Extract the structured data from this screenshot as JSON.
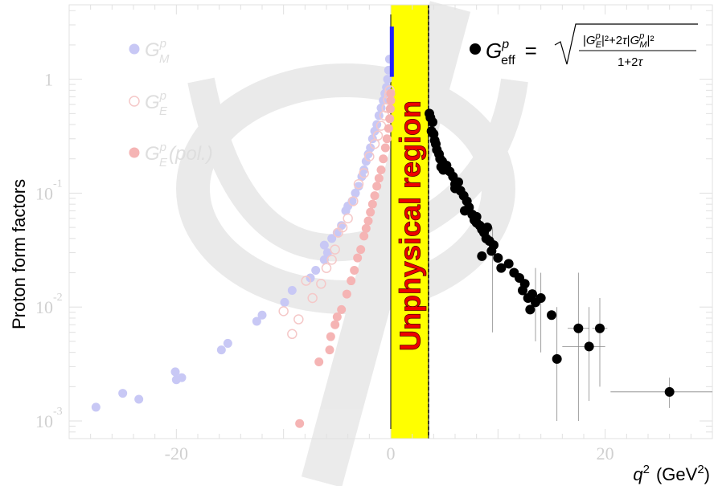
{
  "chart_data": {
    "type": "scatter",
    "title": "",
    "xlabel": "q² (GeV²)",
    "xlabel_parts": {
      "var": "q",
      "sup": "2",
      "unit": "(GeV",
      "unit_sup": "2",
      "unit_end": ")"
    },
    "ylabel": "Proton form factors",
    "xlim": [
      -30,
      30
    ],
    "ylim": [
      0.0007,
      4.5
    ],
    "yscale": "log",
    "x_ticks": [
      {
        "value": -20,
        "label": "-20"
      },
      {
        "value": 0,
        "label": "0"
      },
      {
        "value": 20,
        "label": "20"
      }
    ],
    "y_ticks": [
      {
        "value": 1,
        "base": "1",
        "exp": ""
      },
      {
        "value": 0.1,
        "base": "10",
        "exp": "-1"
      },
      {
        "value": 0.01,
        "base": "10",
        "exp": "-2"
      },
      {
        "value": 0.001,
        "base": "10",
        "exp": "-3"
      }
    ],
    "unphysical_region": {
      "x": [
        0,
        3.52
      ],
      "label": "Unphysical region",
      "fill": "#ffff00",
      "edge": "#000000"
    },
    "series": [
      {
        "legend": {
          "main": "G",
          "sup": "p",
          "sub": "M"
        },
        "marker": "filled-circle",
        "color": "#c8c8f5",
        "points": [
          [
            -27.5,
            0.00132
          ],
          [
            -25,
            0.00175
          ],
          [
            -23.5,
            0.00155
          ],
          [
            -20.1,
            0.0027
          ],
          [
            -19.5,
            0.0024
          ],
          [
            -20,
            0.0023
          ],
          [
            -15.2,
            0.0048
          ],
          [
            -15.8,
            0.0042
          ],
          [
            -12.5,
            0.0075
          ],
          [
            -12,
            0.0085
          ],
          [
            -9.9,
            0.011
          ],
          [
            -9.2,
            0.014
          ],
          [
            -7.5,
            0.018
          ],
          [
            -7,
            0.021
          ],
          [
            -6.2,
            0.026
          ],
          [
            -5.9,
            0.03
          ],
          [
            -6.2,
            0.035
          ],
          [
            -5.5,
            0.04
          ],
          [
            -5,
            0.045
          ],
          [
            -4.6,
            0.052
          ],
          [
            -4.2,
            0.07
          ],
          [
            -4,
            0.077
          ],
          [
            -3.6,
            0.085
          ],
          [
            -3.3,
            0.1
          ],
          [
            -3,
            0.115
          ],
          [
            -2.7,
            0.14
          ],
          [
            -2.5,
            0.16
          ],
          [
            -2.3,
            0.19
          ],
          [
            -2.1,
            0.22
          ],
          [
            -1.9,
            0.25
          ],
          [
            -1.7,
            0.3
          ],
          [
            -1.5,
            0.35
          ],
          [
            -1.3,
            0.4
          ],
          [
            -1.1,
            0.48
          ],
          [
            -0.9,
            0.56
          ],
          [
            -0.7,
            0.65
          ],
          [
            -0.55,
            0.75
          ],
          [
            -0.4,
            0.85
          ],
          [
            -0.3,
            1.0
          ],
          [
            -0.2,
            1.2
          ],
          [
            -0.12,
            1.5
          ]
        ]
      },
      {
        "legend": {
          "main": "G",
          "sup": "p",
          "sub": "E"
        },
        "marker": "open-circle",
        "color": "#f5c8c8",
        "points": [
          [
            -10,
            0.0092
          ],
          [
            -9.2,
            0.0058
          ],
          [
            -8.6,
            0.0078
          ],
          [
            -7.9,
            0.017
          ],
          [
            -7.3,
            0.012
          ],
          [
            -6.5,
            0.016
          ],
          [
            -6,
            0.022
          ],
          [
            -5.5,
            0.026
          ],
          [
            -5.2,
            0.032
          ],
          [
            -4.9,
            0.045
          ],
          [
            -4.5,
            0.05
          ],
          [
            -4,
            0.06
          ],
          [
            -3.5,
            0.085
          ],
          [
            -3,
            0.12
          ],
          [
            -2.5,
            0.15
          ],
          [
            -2,
            0.21
          ],
          [
            -1.5,
            0.27
          ],
          [
            -1.2,
            0.32
          ],
          [
            -0.9,
            0.39
          ],
          [
            -0.6,
            0.48
          ],
          [
            -0.4,
            0.56
          ],
          [
            -0.25,
            0.66
          ],
          [
            -0.15,
            0.73
          ],
          [
            -0.1,
            0.8
          ]
        ]
      },
      {
        "legend": {
          "main": "G",
          "sup": "p",
          "sub": "E",
          "extra": "(pol.)"
        },
        "marker": "filled-circle",
        "color": "#f5b4b4",
        "points": [
          [
            -8.5,
            0.00095
          ],
          [
            -6.7,
            0.0033
          ],
          [
            -5.7,
            0.0042
          ],
          [
            -5.6,
            0.0055
          ],
          [
            -5.2,
            0.007
          ],
          [
            -5,
            0.0082
          ],
          [
            -4.6,
            0.0095
          ],
          [
            -4.1,
            0.013
          ],
          [
            -3.7,
            0.017
          ],
          [
            -3.4,
            0.021
          ],
          [
            -3.1,
            0.027
          ],
          [
            -2.8,
            0.032
          ],
          [
            -2.5,
            0.042
          ],
          [
            -2.3,
            0.049
          ],
          [
            -2.1,
            0.057
          ],
          [
            -1.9,
            0.068
          ],
          [
            -1.7,
            0.08
          ],
          [
            -1.5,
            0.095
          ],
          [
            -1.3,
            0.115
          ],
          [
            -1.1,
            0.135
          ],
          [
            -0.9,
            0.16
          ],
          [
            -0.7,
            0.2
          ],
          [
            -0.5,
            0.25
          ],
          [
            -0.35,
            0.3
          ],
          [
            -0.2,
            0.37
          ],
          [
            -0.1,
            0.45
          ],
          [
            -0.05,
            0.55
          ],
          [
            0,
            0.65
          ],
          [
            0,
            0.75
          ]
        ]
      },
      {
        "legend": {
          "main": "G",
          "sup": "p",
          "sub": "eff"
        },
        "marker": "filled-circle",
        "color": "#000000",
        "formula": "G^p_eff = sqrt( (|G^p_E|^2 + 2τ|G^p_M|^2) / (1+2τ) )",
        "formula_parts": {
          "numerator": "|G|²+2τ|G|²",
          "denominator": "1+2τ",
          "tau": "τ"
        },
        "points": [
          [
            3.6,
            0.5
          ],
          [
            3.7,
            0.46
          ],
          [
            3.9,
            0.42
          ],
          [
            3.8,
            0.35
          ],
          [
            4.0,
            0.33
          ],
          [
            4.1,
            0.29
          ],
          [
            4.2,
            0.27
          ],
          [
            4.3,
            0.24
          ],
          [
            4.5,
            0.22
          ],
          [
            4.6,
            0.2
          ],
          [
            4.8,
            0.19
          ],
          [
            4.7,
            0.17
          ],
          [
            4.9,
            0.16
          ],
          [
            5.2,
            0.175
          ],
          [
            5.5,
            0.155
          ],
          [
            5.8,
            0.14
          ],
          [
            6.0,
            0.12
          ],
          [
            6.3,
            0.125
          ],
          [
            6.0,
            0.11
          ],
          [
            6.5,
            0.105
          ],
          [
            6.8,
            0.095
          ],
          [
            7.1,
            0.085
          ],
          [
            7.3,
            0.075
          ],
          [
            6.9,
            0.07
          ],
          [
            7.6,
            0.065
          ],
          [
            7.8,
            0.058
          ],
          [
            8.0,
            0.055
          ],
          [
            8.3,
            0.052
          ],
          [
            8.5,
            0.048
          ],
          [
            8.0,
            0.062
          ],
          [
            8.7,
            0.045
          ],
          [
            9.0,
            0.05
          ],
          [
            8.9,
            0.04
          ],
          [
            9.2,
            0.038
          ],
          [
            9.6,
            0.035
          ],
          [
            9.4,
            0.031
          ],
          [
            10.0,
            0.027
          ],
          [
            8.5,
            0.028
          ],
          [
            10.3,
            0.022
          ],
          [
            11,
            0.024
          ],
          [
            11.5,
            0.02
          ],
          [
            12,
            0.018
          ],
          [
            12.5,
            0.016
          ],
          [
            12.3,
            0.014
          ],
          [
            12.8,
            0.012
          ],
          [
            13.2,
            0.013
          ],
          [
            13.5,
            0.011
          ],
          [
            13.0,
            0.0095
          ],
          [
            14,
            0.012
          ],
          [
            15,
            0.0085
          ],
          [
            15.5,
            0.0035
          ],
          [
            17.5,
            0.0065
          ],
          [
            18.5,
            0.0045
          ],
          [
            19.5,
            0.0065
          ],
          [
            26,
            0.0018
          ]
        ],
        "errors": [
          [
            15.5,
            0.001,
            0.01
          ],
          [
            17.5,
            0.001,
            0.02
          ],
          [
            18.5,
            0.0015,
            0.01
          ],
          [
            19.5,
            0.002,
            0.012
          ],
          [
            26,
            0.0013,
            0.0024
          ],
          [
            9.5,
            0.006,
            0.05
          ],
          [
            14,
            0.004,
            0.02
          ],
          [
            13.5,
            0.005,
            0.022
          ]
        ],
        "xerrors": [
          [
            17.5,
            16.5,
            18.5
          ],
          [
            18.5,
            16,
            20
          ],
          [
            19.5,
            18.8,
            20.2
          ],
          [
            26,
            20.5,
            30
          ]
        ]
      }
    ]
  }
}
